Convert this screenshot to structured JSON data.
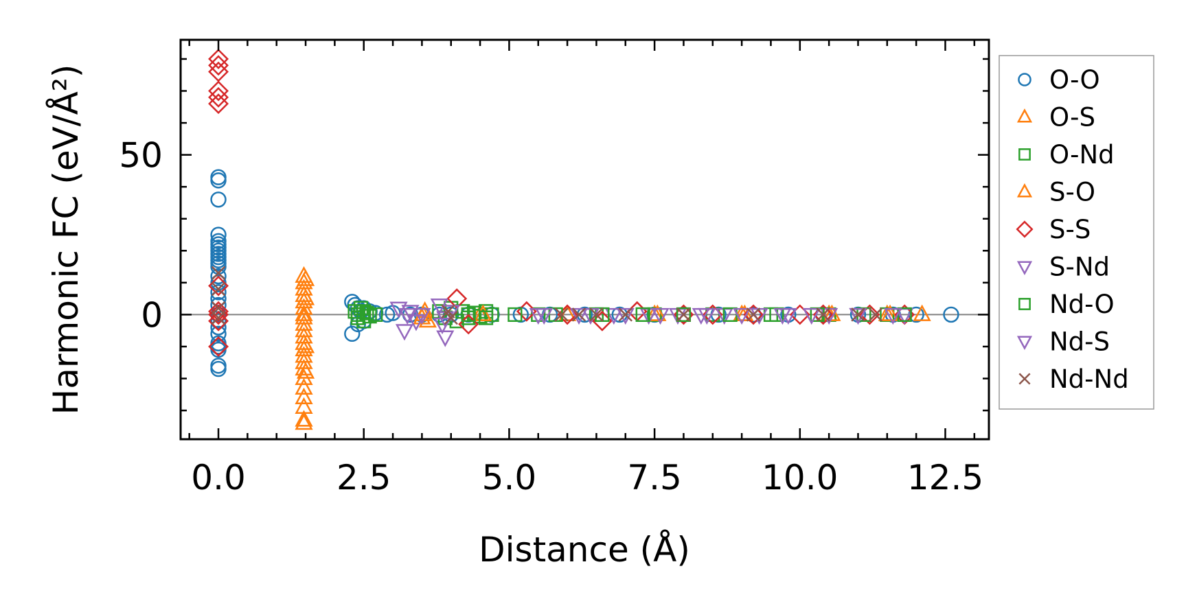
{
  "chart_data": {
    "type": "scatter",
    "title": "",
    "xlabel": "Distance (Å)",
    "ylabel": "Harmonic FC (eV/Å²)",
    "xlim": [
      -0.65,
      13.25
    ],
    "ylim": [
      -39,
      86
    ],
    "x_ticks": [
      0.0,
      2.5,
      5.0,
      7.5,
      10.0,
      12.5
    ],
    "x_tick_labels": [
      "0.0",
      "2.5",
      "5.0",
      "7.5",
      "10.0",
      "12.5"
    ],
    "y_ticks": [
      0,
      50
    ],
    "y_tick_labels": [
      "0",
      "50"
    ],
    "x_minor_step": 0.5,
    "y_minor_step": 10,
    "zero_line": true,
    "grid": false,
    "legend_position": "outside-right",
    "series": [
      {
        "name": "O-O",
        "marker": "circle",
        "color": "#1f77b4",
        "x": [
          0,
          0,
          0,
          0,
          0,
          0,
          0,
          0,
          0,
          0,
          0,
          0,
          0,
          0,
          0,
          0,
          0,
          0,
          0,
          0,
          0,
          0,
          0,
          0,
          0,
          0,
          0,
          2.3,
          2.3,
          2.35,
          2.4,
          2.4,
          2.45,
          2.5,
          2.5,
          2.6,
          2.7,
          2.9,
          3.0,
          3.3,
          3.5,
          3.8,
          4.0,
          4.3,
          4.7,
          5.2,
          5.7,
          6.3,
          6.9,
          7.5,
          8.0,
          8.6,
          9.2,
          9.8,
          10.4,
          11.0,
          11.6,
          12.0,
          12.6
        ],
        "y": [
          43,
          42,
          36,
          25,
          23,
          22,
          21,
          20,
          19,
          18,
          17,
          16,
          15,
          12,
          10,
          7,
          5,
          3,
          0,
          -2,
          -4,
          -6,
          -9,
          -10,
          -11,
          -16,
          -17,
          4,
          -6,
          3,
          2,
          -3,
          1,
          2,
          -2,
          1,
          0.5,
          0,
          0.5,
          0,
          0,
          0,
          0,
          0,
          0,
          0,
          0,
          0,
          0,
          0,
          0,
          0,
          0,
          0,
          0,
          0,
          0,
          0,
          0
        ]
      },
      {
        "name": "O-S",
        "marker": "triangle-up",
        "color": "#ff7f0e",
        "x": [
          1.47,
          1.47,
          1.47,
          1.47,
          1.47,
          1.47,
          1.47,
          1.47,
          1.47,
          1.47,
          1.47,
          1.47,
          1.47,
          1.47,
          1.47,
          1.47,
          1.47,
          1.47,
          1.47,
          1.47,
          1.47,
          1.47,
          3.5,
          3.55,
          3.6,
          4.5,
          6.0,
          7.5,
          9.0,
          10.5,
          11.5,
          12.1
        ],
        "y": [
          12,
          10,
          8,
          6,
          4,
          2,
          0,
          -1,
          -3,
          -5,
          -7,
          -9,
          -11,
          -13,
          -15,
          -17,
          -20,
          -23,
          -26,
          -29,
          -33,
          -34,
          -1,
          1,
          -2,
          0,
          0,
          0,
          0,
          0,
          0,
          0
        ]
      },
      {
        "name": "O-Nd",
        "marker": "square",
        "color": "#2ca02c",
        "x": [
          2.35,
          2.4,
          2.45,
          2.5,
          2.55,
          2.6,
          2.7,
          3.8,
          3.9,
          4.0,
          4.1,
          4.2,
          4.3,
          4.4,
          4.5,
          4.6,
          4.7,
          5.5,
          6.5,
          7.5,
          8.5,
          9.5,
          10.5,
          11.5
        ],
        "y": [
          1,
          -1,
          2,
          -2,
          0.5,
          -0.5,
          0,
          1,
          -1,
          2,
          -2,
          1,
          -1,
          0.5,
          -0.5,
          1,
          0,
          0,
          0,
          0,
          0,
          0,
          0,
          0
        ]
      },
      {
        "name": "S-O",
        "marker": "triangle-up",
        "color": "#ff7f0e",
        "x": [
          1.5,
          1.5,
          1.5,
          1.5,
          3.52,
          4.55,
          7.55,
          9.05,
          10.55,
          11.55
        ],
        "y": [
          11,
          5,
          -10,
          -18,
          0,
          0,
          0,
          0,
          0,
          0
        ]
      },
      {
        "name": "S-S",
        "marker": "diamond",
        "color": "#d62728",
        "x": [
          0,
          0,
          0,
          0,
          0,
          0,
          0,
          0,
          0,
          0,
          0,
          4.1,
          4.3,
          5.3,
          6.0,
          6.6,
          7.2,
          8.0,
          8.5,
          9.2,
          10.0,
          10.4,
          11.2,
          11.8
        ],
        "y": [
          80,
          78,
          76,
          70,
          68,
          66,
          9,
          1,
          0,
          -2,
          -10,
          5,
          -3,
          1,
          0,
          -2,
          1,
          0,
          0,
          0,
          0,
          0,
          0,
          0
        ]
      },
      {
        "name": "S-Nd",
        "marker": "triangle-down",
        "color": "#9467bd",
        "x": [
          3.1,
          3.2,
          3.3,
          3.4,
          3.5,
          3.8,
          3.85,
          3.9,
          4.0,
          5.5,
          6.2,
          6.8,
          7.4,
          7.9,
          8.3,
          8.7,
          9.3,
          9.8,
          10.5,
          11.0,
          11.8
        ],
        "y": [
          2,
          -5,
          1,
          -2,
          0,
          3,
          -3,
          -7,
          1,
          0,
          0,
          0,
          0,
          0,
          0,
          0,
          0,
          0,
          0,
          0,
          0
        ]
      },
      {
        "name": "Nd-O",
        "marker": "square",
        "color": "#2ca02c",
        "x": [
          2.4,
          2.5,
          4.3,
          4.6,
          5.1,
          5.8,
          6.6,
          7.3,
          8.0,
          8.8,
          9.6,
          10.3,
          11.1,
          11.8
        ],
        "y": [
          0,
          1,
          0,
          -1,
          0,
          0,
          0,
          0,
          0,
          0,
          0,
          0,
          0,
          0
        ]
      },
      {
        "name": "Nd-S",
        "marker": "triangle-down",
        "color": "#9467bd",
        "x": [
          3.25,
          3.9,
          5.6,
          6.4,
          7.0,
          7.6,
          8.4,
          9.0,
          9.7,
          10.2,
          11.0,
          11.6
        ],
        "y": [
          0,
          -1,
          0,
          0,
          0,
          0,
          0,
          0,
          0,
          0,
          0,
          0
        ]
      },
      {
        "name": "Nd-Nd",
        "marker": "x",
        "color": "#8c564b",
        "x": [
          0,
          0,
          0,
          0,
          3.95,
          4.0,
          5.9,
          6.2,
          6.5,
          7.0,
          8.0,
          9.2,
          10.4,
          11.0,
          11.3
        ],
        "y": [
          13,
          8,
          2,
          -1,
          1,
          -1,
          0,
          0,
          0,
          0,
          0,
          0,
          0,
          0,
          0
        ]
      }
    ]
  }
}
